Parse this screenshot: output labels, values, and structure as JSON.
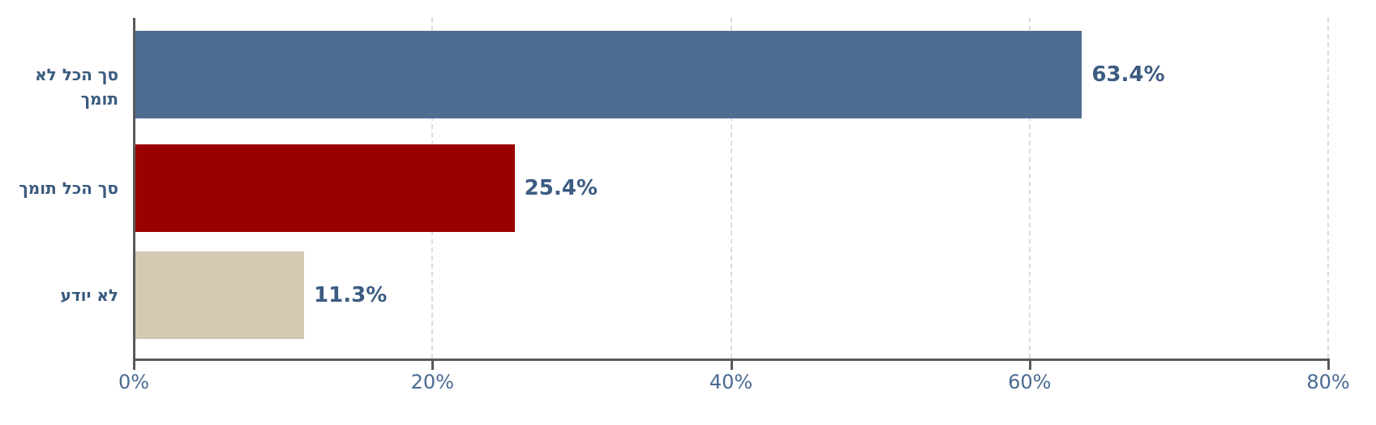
{
  "chart_data": {
    "type": "bar",
    "orientation": "horizontal",
    "title": "",
    "xlabel": "",
    "ylabel": "",
    "categories": [
      "סך הכל לא תומך",
      "סך הכל תומך",
      "לא יודע"
    ],
    "values": [
      63.4,
      25.4,
      11.3
    ],
    "value_labels": [
      "63.4%",
      "25.4%",
      "11.3%"
    ],
    "bar_colors": [
      "#4f6d92",
      "#990000",
      "#d3c9b1"
    ],
    "xlim": [
      0,
      80
    ],
    "x_tick_values": [
      0,
      20,
      40,
      60,
      80
    ],
    "x_tick_labels": [
      "0%",
      "20%",
      "40%",
      "60%",
      "80%"
    ],
    "grid": "vertical-dashed",
    "gridline_color": "#dcdcdc",
    "axis_color": "#595959",
    "category_label_color": "#3a5a7e",
    "value_label_color": "#3d5c82",
    "tick_label_color": "#4a6a91",
    "legend": "none"
  }
}
